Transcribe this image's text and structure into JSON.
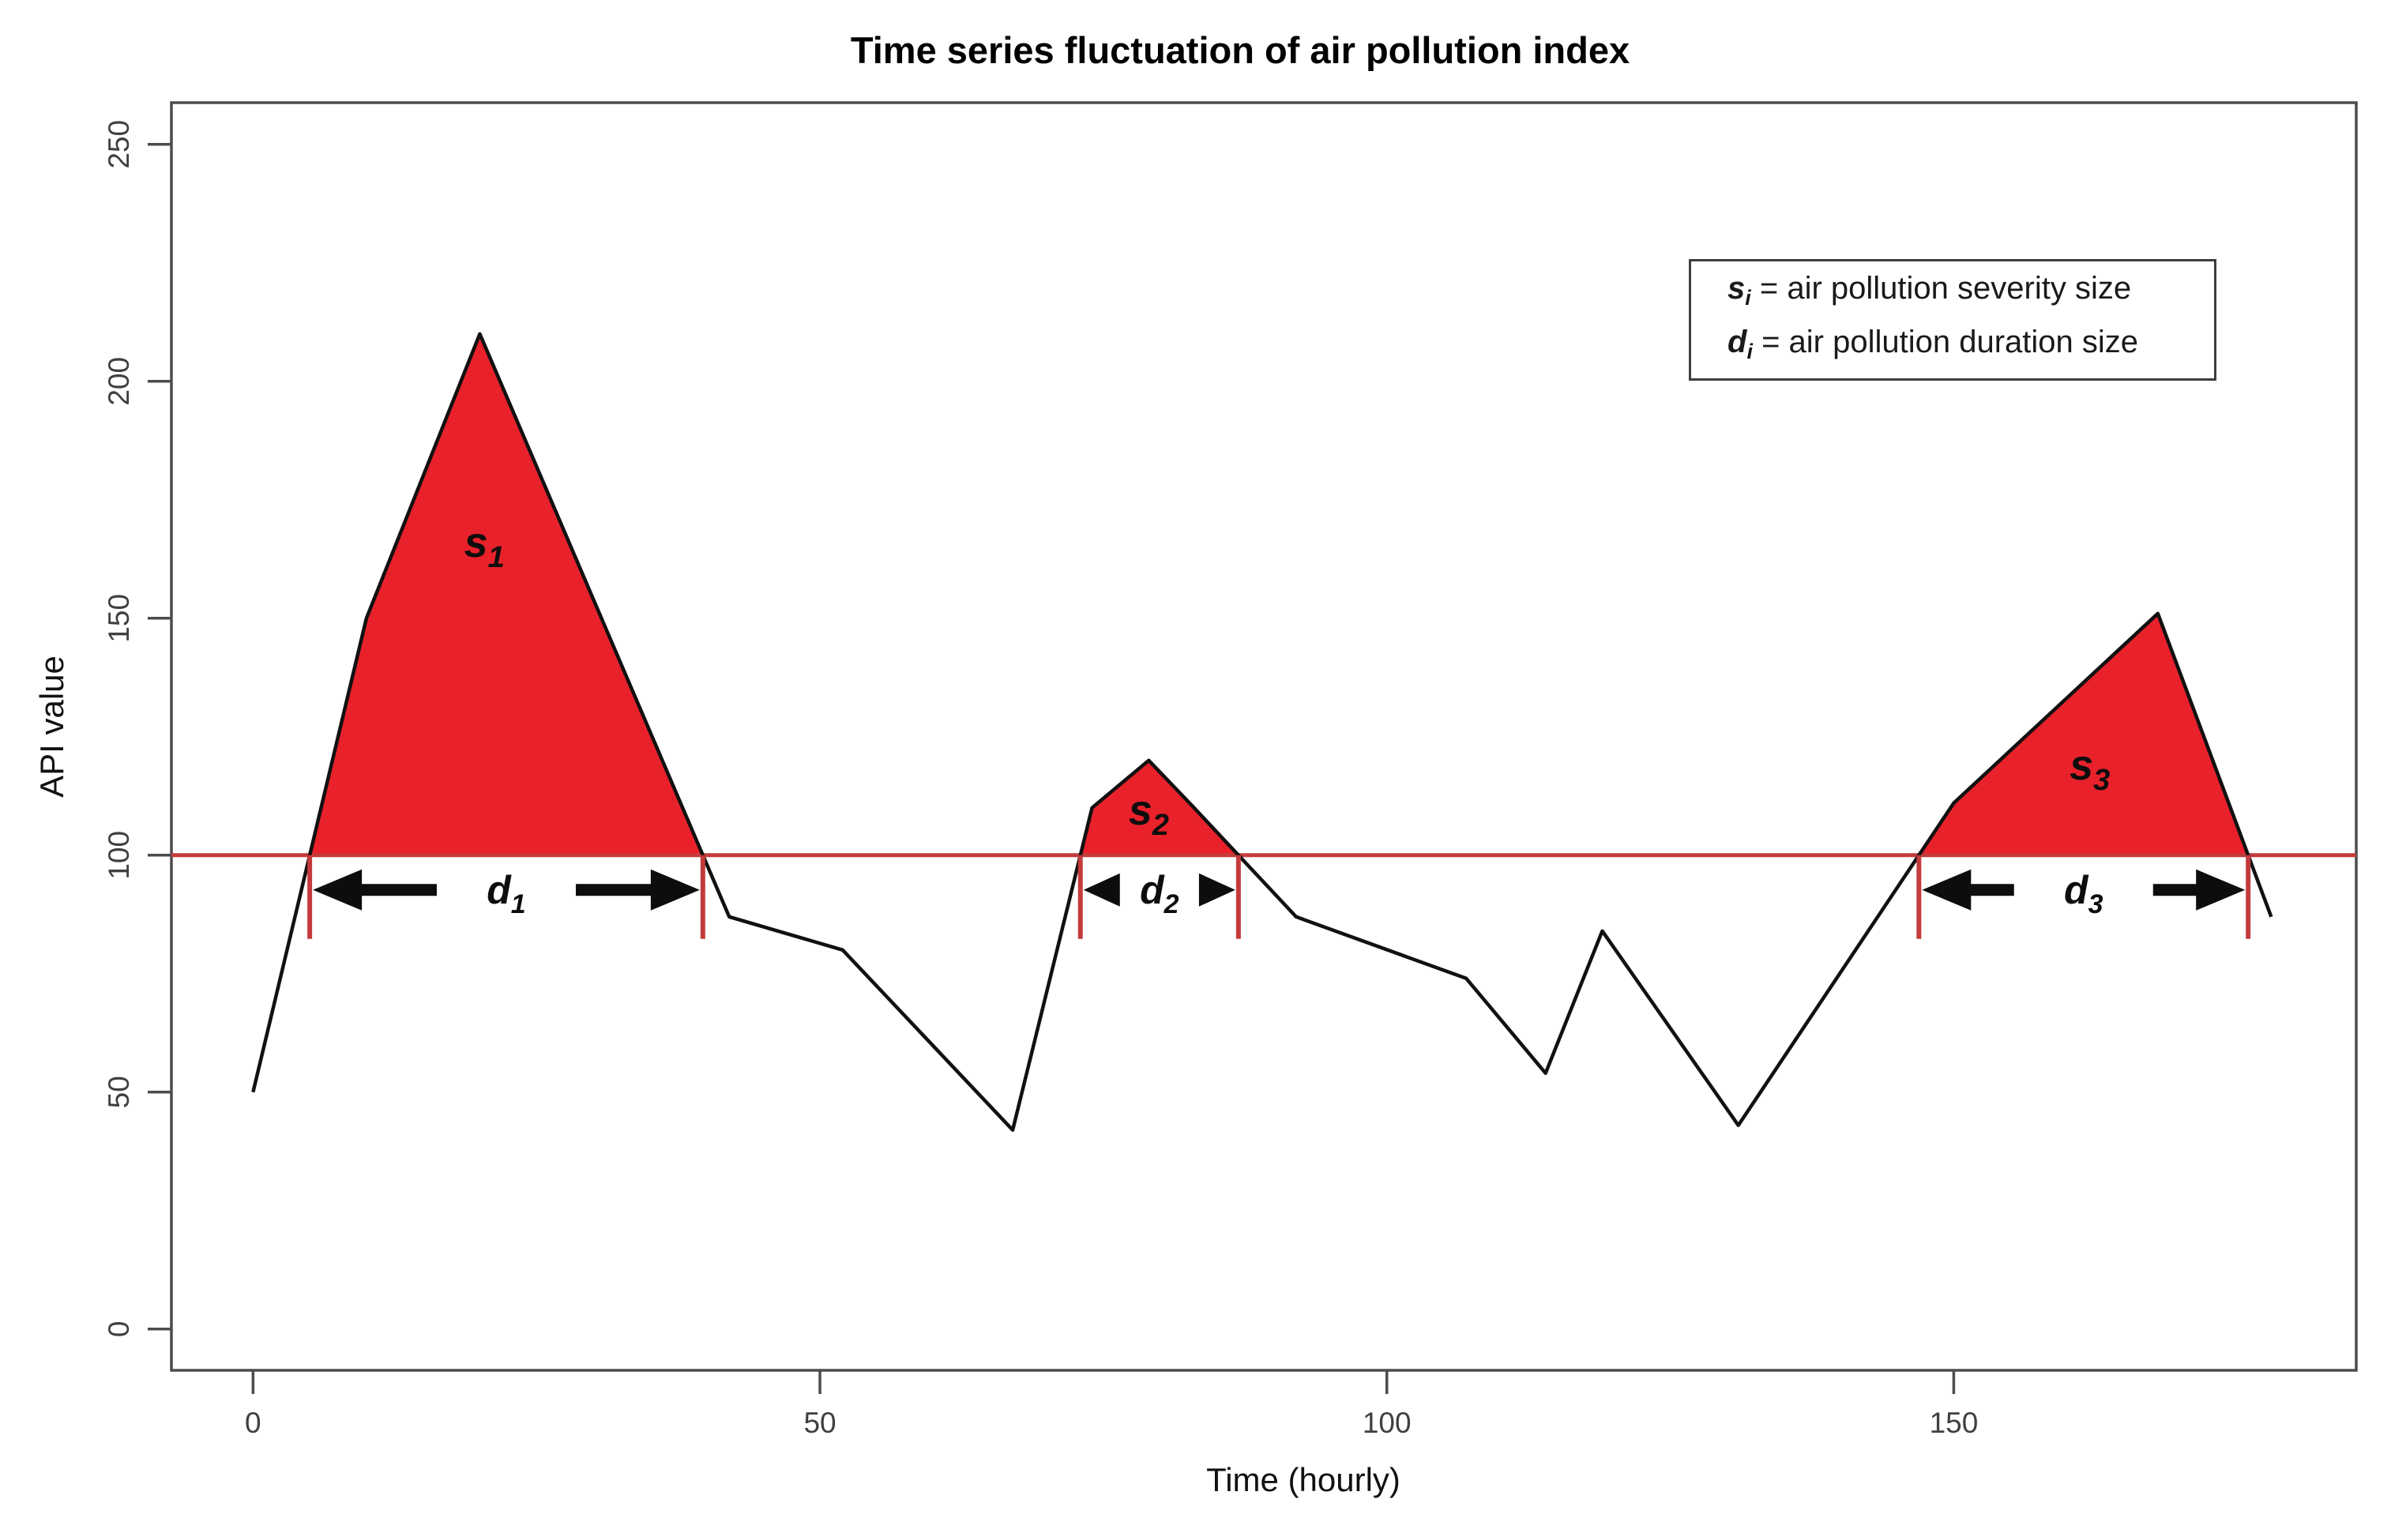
{
  "chart_data": {
    "type": "line",
    "title": "Time series fluctuation of air pollution index",
    "xlabel": "Time (hourly)",
    "ylabel": "API value",
    "x_ticks": [
      0,
      50,
      100,
      150
    ],
    "y_ticks": [
      0,
      50,
      100,
      150,
      200,
      250
    ],
    "xlim": [
      -7.2,
      185.5
    ],
    "ylim": [
      -8.7,
      258.8
    ],
    "grid": false,
    "legend_position": "top-right",
    "line_color": "#111111",
    "fill_color": "#e8212b",
    "threshold": {
      "value": 100,
      "color": "#c43b3c"
    },
    "series": [
      {
        "name": "API",
        "x": [
          0,
          10,
          20,
          42,
          52,
          67,
          74,
          79,
          83,
          92,
          107,
          114,
          119,
          131,
          150,
          168,
          178
        ],
        "y": [
          50,
          150,
          210,
          87,
          80,
          42,
          110,
          120,
          110,
          87,
          74,
          54,
          84,
          43,
          111,
          151,
          87
        ]
      }
    ],
    "episodes": [
      {
        "severity_label": {
          "sym": "s",
          "sub": "1"
        },
        "duration_label": {
          "sym": "d",
          "sub": "1"
        },
        "label_pos": {
          "t": 20.4,
          "v": 163
        }
      },
      {
        "severity_label": {
          "sym": "s",
          "sub": "2"
        },
        "duration_label": {
          "sym": "d",
          "sub": "2"
        },
        "label_pos": {
          "t": 79.0,
          "v": 106.5
        }
      },
      {
        "severity_label": {
          "sym": "s",
          "sub": "3"
        },
        "duration_label": {
          "sym": "d",
          "sub": "3"
        },
        "label_pos": {
          "t": 162.0,
          "v": 116
        }
      }
    ],
    "legend": {
      "lines": [
        {
          "sym": "s",
          "sub": "i",
          "text": " = air pollution severity size"
        },
        {
          "sym": "d",
          "sub": "i",
          "text": " = air pollution duration size"
        }
      ]
    }
  }
}
